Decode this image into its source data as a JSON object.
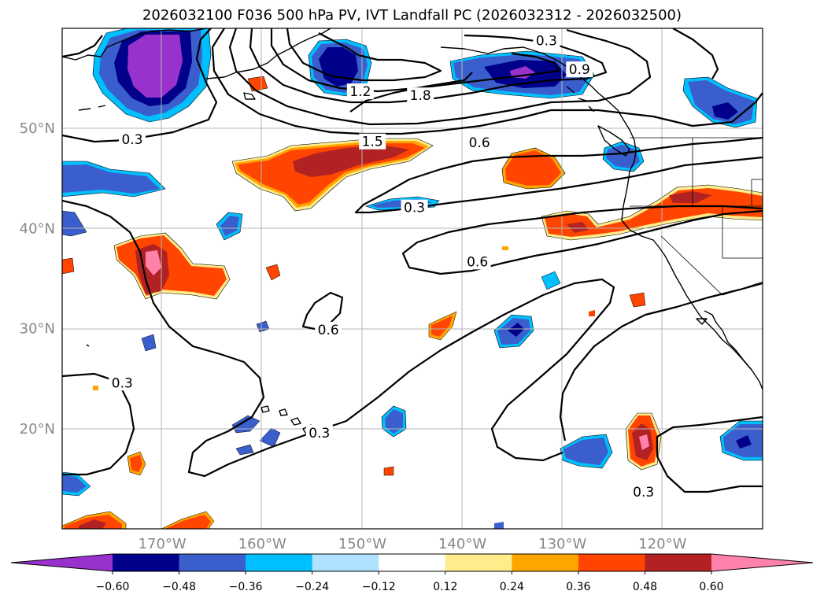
{
  "title": "2026032100 F036 500 hPa PV, IVT Landfall PC (2026032312 - 2026032500)",
  "map": {
    "extent": {
      "lon_min": -180,
      "lon_max": -110,
      "lat_min": 10,
      "lat_max": 60
    },
    "lon_ticks": [
      {
        "lon": -170,
        "label": "170°W"
      },
      {
        "lon": -160,
        "label": "160°W"
      },
      {
        "lon": -150,
        "label": "150°W"
      },
      {
        "lon": -140,
        "label": "140°W"
      },
      {
        "lon": -130,
        "label": "130°W"
      },
      {
        "lon": -120,
        "label": "120°W"
      }
    ],
    "lat_ticks": [
      {
        "lat": 50,
        "label": "50°N"
      },
      {
        "lat": 40,
        "label": "40°N"
      },
      {
        "lat": 30,
        "label": "30°N"
      },
      {
        "lat": 20,
        "label": "20°N"
      }
    ],
    "contour_labels": [
      {
        "text": "0.3",
        "lon": -173,
        "lat": 48.9
      },
      {
        "text": "0.3",
        "lon": -131.6,
        "lat": 58.8
      },
      {
        "text": "0.9",
        "lon": -128.3,
        "lat": 55.9
      },
      {
        "text": "1.2",
        "lon": -150.2,
        "lat": 53.7
      },
      {
        "text": "1.8",
        "lon": -144.2,
        "lat": 53.3
      },
      {
        "text": "1.5",
        "lon": -149,
        "lat": 48.7
      },
      {
        "text": "0.6",
        "lon": -138.3,
        "lat": 48.6
      },
      {
        "text": "0.3",
        "lon": -144.8,
        "lat": 42.1
      },
      {
        "text": "0.6",
        "lon": -138.5,
        "lat": 36.7
      },
      {
        "text": "0.6",
        "lon": -153.4,
        "lat": 29.9
      },
      {
        "text": "0.3",
        "lon": -174,
        "lat": 24.6
      },
      {
        "text": "0.3",
        "lon": -154.3,
        "lat": 19.6
      },
      {
        "text": "0.3",
        "lon": -121.9,
        "lat": 13.7
      }
    ]
  },
  "colorbar": {
    "tick_labels": [
      "−0.60",
      "−0.48",
      "−0.36",
      "−0.24",
      "−0.12",
      "0.12",
      "0.24",
      "0.36",
      "0.48",
      "0.60"
    ],
    "colors": [
      "#9932cc",
      "#00008b",
      "#3a5fcd",
      "#00bfff",
      "#b0e2ff",
      "#ffffff",
      "#ffec8b",
      "#ffa500",
      "#ff4500",
      "#b22222",
      "#ff82ab"
    ],
    "extend": "both"
  },
  "chart_data": {
    "type": "map",
    "fields": {
      "contours": "500 hPa PV",
      "filled": "IVT Landfall PC"
    },
    "contour_levels": [
      0.3,
      0.6,
      0.9,
      1.2,
      1.5,
      1.8
    ],
    "fill_levels": [
      -0.6,
      -0.48,
      -0.36,
      -0.24,
      -0.12,
      0.12,
      0.24,
      0.36,
      0.48,
      0.6
    ],
    "grid": true
  }
}
